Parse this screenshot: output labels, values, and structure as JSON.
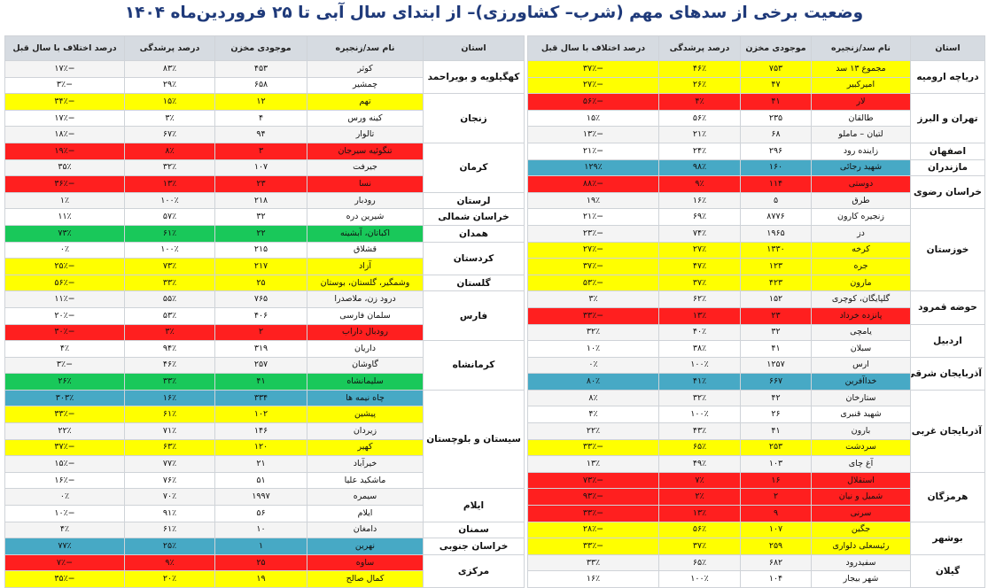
{
  "title": "وضعیت برخی از سدهای مهم (شرب– کشاورزی)– از ابتدای سال آبی تا ۲۵ فروردین‌ماه ۱۴۰۴",
  "colors": {
    "yellow": "#ffff00",
    "red": "#ff1f1f",
    "green": "#19c85a",
    "blue": "#47a9c5",
    "header": "#d6dbe1"
  },
  "headers": {
    "province": "استان",
    "dam": "نام سد/زنجیره",
    "storage": "موجودی مخزن",
    "fill": "درصد پرشدگی",
    "diff": "درصد اختلاف با سال قبل"
  },
  "right_table": [
    {
      "province": "دریاچه ارومیه",
      "rows": [
        {
          "dam": "مجموع ۱۳ سد",
          "storage": "۷۵۳",
          "fill": "۴۶٪",
          "diff": "−۳۷٪",
          "color": "y"
        },
        {
          "dam": "امیرکبیر",
          "storage": "۴۷",
          "fill": "۲۶٪",
          "diff": "−۲۷٪",
          "color": "y"
        }
      ]
    },
    {
      "province": "تهران و البرز",
      "rows": [
        {
          "dam": "لار",
          "storage": "۴۱",
          "fill": "۴٪",
          "diff": "−۵۶٪",
          "color": "r"
        },
        {
          "dam": "طالقان",
          "storage": "۲۳۵",
          "fill": "۵۶٪",
          "diff": "۱۵٪",
          "color": "w"
        },
        {
          "dam": "لتیان – ماملو",
          "storage": "۶۸",
          "fill": "۲۱٪",
          "diff": "−۱۳٪",
          "color": "w"
        }
      ]
    },
    {
      "province": "اصفهان",
      "rows": [
        {
          "dam": "زاینده رود",
          "storage": "۲۹۶",
          "fill": "۲۴٪",
          "diff": "−۲۱٪",
          "color": "w"
        }
      ]
    },
    {
      "province": "مازندران",
      "rows": [
        {
          "dam": "شهید رجائی",
          "storage": "۱۶۰",
          "fill": "۹۸٪",
          "diff": "۱۲۹٪",
          "color": "b"
        }
      ]
    },
    {
      "province": "خراسان رضوی",
      "rows": [
        {
          "dam": "دوستی",
          "storage": "۱۱۴",
          "fill": "۹٪",
          "diff": "−۸۸٪",
          "color": "r"
        },
        {
          "dam": "طرق",
          "storage": "۵",
          "fill": "۱۶٪",
          "diff": "۱۹٪",
          "color": "w"
        }
      ]
    },
    {
      "province": "خوزستان",
      "rows": [
        {
          "dam": "زنجیره کارون",
          "storage": "۸۷۷۶",
          "fill": "۶۹٪",
          "diff": "−۲۱٪",
          "color": "w"
        },
        {
          "dam": "دز",
          "storage": "۱۹۶۵",
          "fill": "۷۴٪",
          "diff": "−۲۳٪",
          "color": "w"
        },
        {
          "dam": "کرخه",
          "storage": "۱۳۳۰",
          "fill": "۲۷٪",
          "diff": "−۲۷٪",
          "color": "y"
        },
        {
          "dam": "جره",
          "storage": "۱۲۳",
          "fill": "۴۷٪",
          "diff": "−۳۷٪",
          "color": "y"
        },
        {
          "dam": "مارون",
          "storage": "۴۲۳",
          "fill": "۳۷٪",
          "diff": "−۵۳٪",
          "color": "y"
        }
      ]
    },
    {
      "province": "حوضه قمرود",
      "rows": [
        {
          "dam": "گلپایگان، کوچری",
          "storage": "۱۵۲",
          "fill": "۶۲٪",
          "diff": "۳٪",
          "color": "w"
        },
        {
          "dam": "پانزده خرداد",
          "storage": "۲۳",
          "fill": "۱۳٪",
          "diff": "−۳۳٪",
          "color": "r"
        }
      ]
    },
    {
      "province": "اردبیل",
      "rows": [
        {
          "dam": "یامچی",
          "storage": "۳۲",
          "fill": "۴۰٪",
          "diff": "۳۲٪",
          "color": "w"
        },
        {
          "dam": "سبلان",
          "storage": "۴۱",
          "fill": "۳۸٪",
          "diff": "۱۰٪",
          "color": "w"
        }
      ]
    },
    {
      "province": "آذربایجان شرقی",
      "rows": [
        {
          "dam": "ارس",
          "storage": "۱۲۵۷",
          "fill": "۱۰۰٪",
          "diff": "۰٪",
          "color": "w"
        },
        {
          "dam": "خداآفرین",
          "storage": "۶۶۷",
          "fill": "۴۱٪",
          "diff": "۸۰٪",
          "color": "b"
        }
      ]
    },
    {
      "province": "آذربایجان غربی",
      "rows": [
        {
          "dam": "ستارخان",
          "storage": "۴۲",
          "fill": "۳۲٪",
          "diff": "۸٪",
          "color": "w"
        },
        {
          "dam": "شهید قنبری",
          "storage": "۲۶",
          "fill": "۱۰۰٪",
          "diff": "۴٪",
          "color": "w"
        },
        {
          "dam": "بارون",
          "storage": "۴۱",
          "fill": "۴۳٪",
          "diff": "۲۲٪",
          "color": "w"
        },
        {
          "dam": "سردشت",
          "storage": "۲۵۳",
          "fill": "۶۵٪",
          "diff": "−۳۳٪",
          "color": "y"
        },
        {
          "dam": "آغ چای",
          "storage": "۱۰۳",
          "fill": "۴۹٪",
          "diff": "۱۳٪",
          "color": "w"
        }
      ]
    },
    {
      "province": "هرمزگان",
      "rows": [
        {
          "dam": "استقلال",
          "storage": "۱۶",
          "fill": "۷٪",
          "diff": "−۷۳٪",
          "color": "r"
        },
        {
          "dam": "شمیل و نیان",
          "storage": "۲",
          "fill": "۲٪",
          "diff": "−۹۳٪",
          "color": "r"
        },
        {
          "dam": "سرنی",
          "storage": "۹",
          "fill": "۱۳٪",
          "diff": "−۳۳٪",
          "color": "r"
        }
      ]
    },
    {
      "province": "بوشهر",
      "rows": [
        {
          "dam": "جگین",
          "storage": "۱۰۷",
          "fill": "۵۶٪",
          "diff": "−۲۸٪",
          "color": "y"
        },
        {
          "dam": "رئیسعلی دلواری",
          "storage": "۲۵۹",
          "fill": "۳۷٪",
          "diff": "−۳۳٪",
          "color": "y"
        }
      ]
    },
    {
      "province": "گیلان",
      "rows": [
        {
          "dam": "سفیدرود",
          "storage": "۶۸۲",
          "fill": "۶۵٪",
          "diff": "۳۳٪",
          "color": "w"
        },
        {
          "dam": "شهر بیجار",
          "storage": "۱۰۴",
          "fill": "۱۰۰٪",
          "diff": "۱۶٪",
          "color": "w"
        }
      ]
    }
  ],
  "left_table": [
    {
      "province": "کهگیلویه و بویراحمد",
      "rows": [
        {
          "dam": "کوثر",
          "storage": "۴۵۳",
          "fill": "۸۳٪",
          "diff": "−۱۷٪",
          "color": "w"
        },
        {
          "dam": "چمشیر",
          "storage": "۶۵۸",
          "fill": "۲۹٪",
          "diff": "−۳٪",
          "color": "w"
        }
      ]
    },
    {
      "province": "زنجان",
      "rows": [
        {
          "dam": "تهم",
          "storage": "۱۲",
          "fill": "۱۵٪",
          "diff": "−۳۴٪",
          "color": "y"
        },
        {
          "dam": "کینه ورس",
          "storage": "۴",
          "fill": "۳٪",
          "diff": "−۱۷٪",
          "color": "w"
        },
        {
          "dam": "تالوار",
          "storage": "۹۴",
          "fill": "۶۷٪",
          "diff": "−۱۸٪",
          "color": "w"
        }
      ]
    },
    {
      "province": "کرمان",
      "rows": [
        {
          "dam": "تنگوئیه سیرجان",
          "storage": "۳",
          "fill": "۸٪",
          "diff": "−۱۹٪",
          "color": "r"
        },
        {
          "dam": "جیرفت",
          "storage": "۱۰۷",
          "fill": "۳۲٪",
          "diff": "۳۵٪",
          "color": "w"
        },
        {
          "dam": "نسا",
          "storage": "۲۳",
          "fill": "۱۳٪",
          "diff": "−۳۶٪",
          "color": "r"
        }
      ]
    },
    {
      "province": "لرستان",
      "rows": [
        {
          "dam": "رودبار",
          "storage": "۲۱۸",
          "fill": "۱۰۰٪",
          "diff": "۱٪",
          "color": "w"
        }
      ]
    },
    {
      "province": "خراسان شمالی",
      "rows": [
        {
          "dam": "شیرین دره",
          "storage": "۳۲",
          "fill": "۵۷٪",
          "diff": "۱۱٪",
          "color": "w"
        }
      ]
    },
    {
      "province": "همدان",
      "rows": [
        {
          "dam": "اکباتان، آبشینه",
          "storage": "۲۲",
          "fill": "۶۱٪",
          "diff": "۷۳٪",
          "color": "g"
        }
      ]
    },
    {
      "province": "کردستان",
      "rows": [
        {
          "dam": "قشلاق",
          "storage": "۲۱۵",
          "fill": "۱۰۰٪",
          "diff": "۰٪",
          "color": "w"
        },
        {
          "dam": "آزاد",
          "storage": "۲۱۷",
          "fill": "۷۳٪",
          "diff": "−۲۵٪",
          "color": "y"
        }
      ]
    },
    {
      "province": "گلستان",
      "rows": [
        {
          "dam": "وشمگیر، گلستان، بوستان",
          "storage": "۲۵",
          "fill": "۳۳٪",
          "diff": "−۵۶٪",
          "color": "y"
        }
      ]
    },
    {
      "province": "فارس",
      "rows": [
        {
          "dam": "درود زن، ملاصدرا",
          "storage": "۷۶۵",
          "fill": "۵۵٪",
          "diff": "−۱۱٪",
          "color": "w"
        },
        {
          "dam": "سلمان فارسی",
          "storage": "۴۰۶",
          "fill": "۵۳٪",
          "diff": "−۲۰٪",
          "color": "w"
        },
        {
          "dam": "رودبال داراب",
          "storage": "۲",
          "fill": "۳٪",
          "diff": "−۳۰٪",
          "color": "r"
        }
      ]
    },
    {
      "province": "کرمانشاه",
      "rows": [
        {
          "dam": "داریان",
          "storage": "۳۱۹",
          "fill": "۹۴٪",
          "diff": "۴٪",
          "color": "w"
        },
        {
          "dam": "گاوشان",
          "storage": "۲۵۷",
          "fill": "۴۶٪",
          "diff": "−۳٪",
          "color": "w"
        },
        {
          "dam": "سلیمانشاه",
          "storage": "۴۱",
          "fill": "۳۳٪",
          "diff": "۲۶٪",
          "color": "g"
        }
      ]
    },
    {
      "province": "سیستان و بلوچستان",
      "rows": [
        {
          "dam": "چاه نیمه ها",
          "storage": "۳۳۴",
          "fill": "۱۶٪",
          "diff": "۳۰۳٪",
          "color": "b"
        },
        {
          "dam": "پیشین",
          "storage": "۱۰۲",
          "fill": "۶۱٪",
          "diff": "−۳۳٪",
          "color": "y"
        },
        {
          "dam": "زیردان",
          "storage": "۱۴۶",
          "fill": "۷۱٪",
          "diff": "۲۲٪",
          "color": "w"
        },
        {
          "dam": "کهیر",
          "storage": "۱۲۰",
          "fill": "۶۳٪",
          "diff": "−۳۷٪",
          "color": "y"
        },
        {
          "dam": "خیرآباد",
          "storage": "۲۱",
          "fill": "۷۷٪",
          "diff": "−۱۵٪",
          "color": "w"
        },
        {
          "dam": "ماشکید علیا",
          "storage": "۵۱",
          "fill": "۷۶٪",
          "diff": "−۱۶٪",
          "color": "w"
        }
      ]
    },
    {
      "province": "ایلام",
      "rows": [
        {
          "dam": "سیمره",
          "storage": "۱۹۹۷",
          "fill": "۷۰٪",
          "diff": "۰٪",
          "color": "w"
        },
        {
          "dam": "ایلام",
          "storage": "۵۶",
          "fill": "۹۱٪",
          "diff": "−۱۰٪",
          "color": "w"
        }
      ]
    },
    {
      "province": "سمنان",
      "rows": [
        {
          "dam": "دامغان",
          "storage": "۱۰",
          "fill": "۶۱٪",
          "diff": "۴٪",
          "color": "w"
        }
      ]
    },
    {
      "province": "خراسان جنوبی",
      "rows": [
        {
          "dam": "نهرین",
          "storage": "۱",
          "fill": "۲۵٪",
          "diff": "۷۷٪",
          "color": "b"
        }
      ]
    },
    {
      "province": "مرکزی",
      "rows": [
        {
          "dam": "ساوه",
          "storage": "۲۵",
          "fill": "۹٪",
          "diff": "−۷٪",
          "color": "r"
        },
        {
          "dam": "کمال صالح",
          "storage": "۱۹",
          "fill": "۲۰٪",
          "diff": "−۳۵٪",
          "color": "y"
        }
      ]
    }
  ]
}
